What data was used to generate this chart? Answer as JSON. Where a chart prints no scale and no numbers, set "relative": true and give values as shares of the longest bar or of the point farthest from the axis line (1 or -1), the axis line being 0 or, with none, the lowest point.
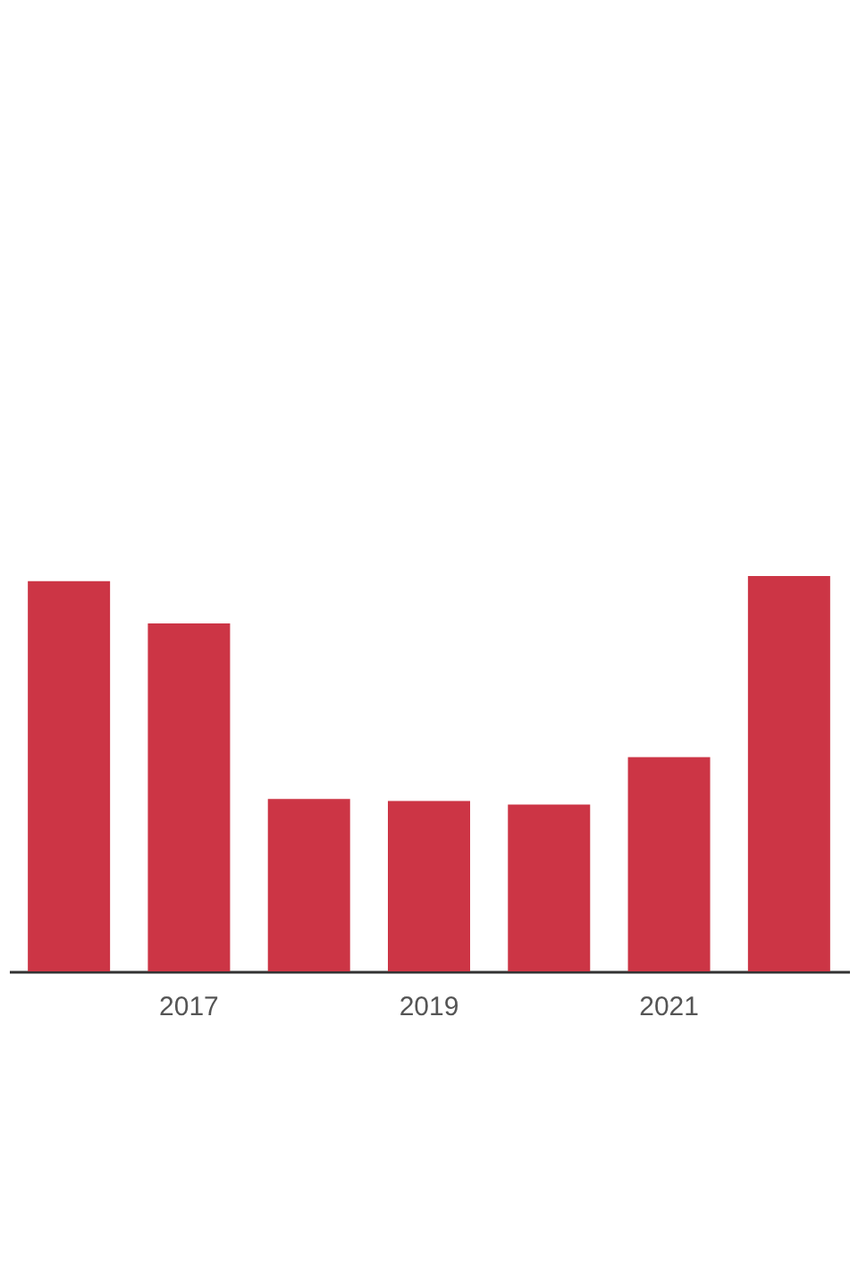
{
  "chart_data": {
    "type": "bar",
    "relative": true,
    "categories": [
      null,
      "2017",
      null,
      "2019",
      null,
      "2021",
      null
    ],
    "series": [
      {
        "color": "#cc3545",
        "values": [
          0.987,
          0.88,
          0.436,
          0.431,
          0.422,
          0.542,
          1
        ]
      }
    ]
  }
}
